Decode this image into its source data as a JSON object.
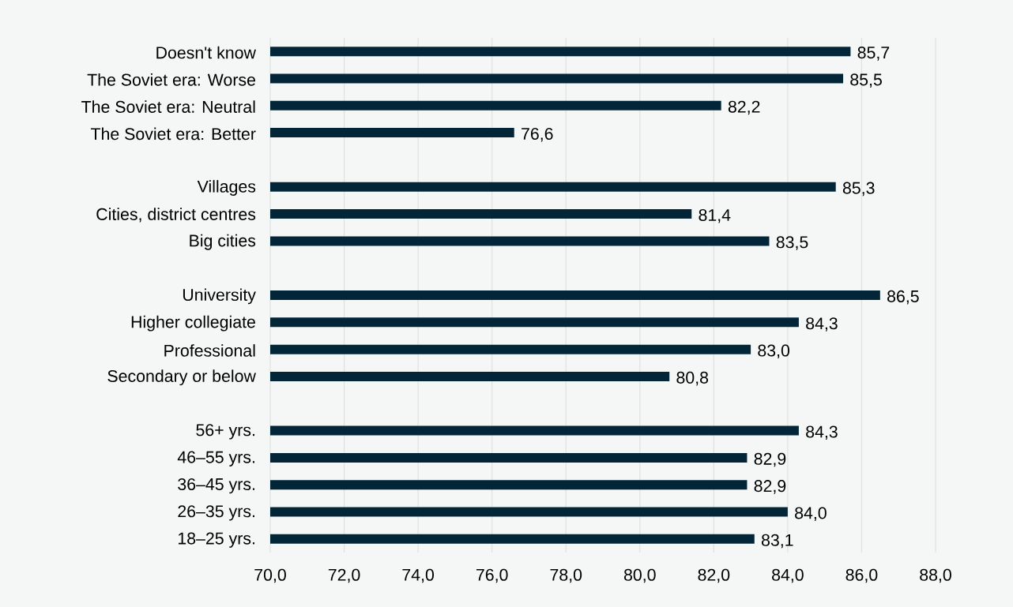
{
  "chart_data": {
    "type": "bar",
    "orientation": "horizontal",
    "categories": [
      "Doesn't know",
      "The Soviet era: Worse",
      "The Soviet era: Neutral",
      "The Soviet era: Better",
      null,
      "Villages",
      "Cities, district centres",
      "Big cities",
      null,
      "University",
      "Higher collegiate",
      "Professional",
      "Secondary or below",
      null,
      "56+ yrs.",
      "46–55 yrs.",
      "36–45 yrs.",
      "26–35 yrs.",
      "18–25 yrs."
    ],
    "values": [
      85.7,
      85.5,
      82.2,
      76.6,
      null,
      85.3,
      81.4,
      83.5,
      null,
      86.5,
      84.3,
      83.0,
      80.8,
      null,
      84.3,
      82.9,
      82.9,
      84.0,
      83.1
    ],
    "value_labels": [
      "85,7",
      "85,5",
      "82,2",
      "76,6",
      null,
      "85,3",
      "81,4",
      "83,5",
      null,
      "86,5",
      "84,3",
      "83,0",
      "80,8",
      null,
      "84,3",
      "82,9",
      "82,9",
      "84,0",
      "83,1"
    ],
    "color": "#022638",
    "xlim": [
      70,
      88
    ],
    "xticks": [
      {
        "value": 70,
        "label": "70,0"
      },
      {
        "value": 72,
        "label": "72,0"
      },
      {
        "value": 74,
        "label": "74,0"
      },
      {
        "value": 76,
        "label": "76,0"
      },
      {
        "value": 78,
        "label": "78,0"
      },
      {
        "value": 80,
        "label": "80,0"
      },
      {
        "value": 82,
        "label": "82,0"
      },
      {
        "value": 84,
        "label": "84,0"
      },
      {
        "value": 86,
        "label": "86,0"
      },
      {
        "value": 88,
        "label": "88,0"
      }
    ],
    "grid": "x"
  }
}
